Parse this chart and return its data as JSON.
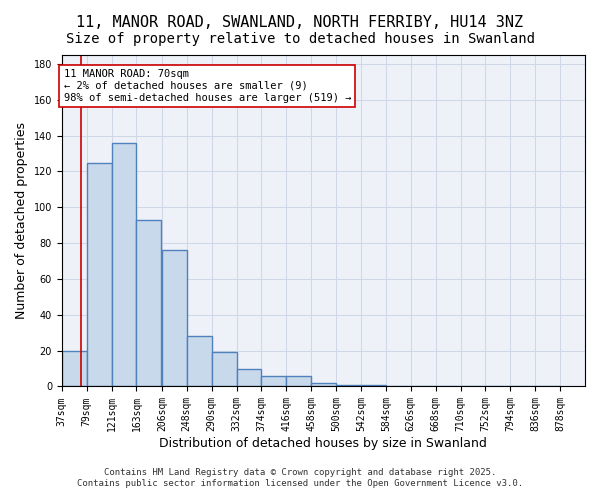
{
  "title1": "11, MANOR ROAD, SWANLAND, NORTH FERRIBY, HU14 3NZ",
  "title2": "Size of property relative to detached houses in Swanland",
  "xlabel": "Distribution of detached houses by size in Swanland",
  "ylabel": "Number of detached properties",
  "bin_labels": [
    "37sqm",
    "79sqm",
    "121sqm",
    "163sqm",
    "206sqm",
    "248sqm",
    "290sqm",
    "332sqm",
    "374sqm",
    "416sqm",
    "458sqm",
    "500sqm",
    "542sqm",
    "584sqm",
    "626sqm",
    "668sqm",
    "710sqm",
    "752sqm",
    "794sqm",
    "836sqm",
    "878sqm"
  ],
  "bin_edges": [
    37,
    79,
    121,
    163,
    206,
    248,
    290,
    332,
    374,
    416,
    458,
    500,
    542,
    584,
    626,
    668,
    710,
    752,
    794,
    836,
    878
  ],
  "bar_heights": [
    20,
    125,
    136,
    93,
    76,
    28,
    19,
    10,
    6,
    6,
    2,
    1,
    1,
    0,
    0,
    0,
    0,
    0,
    0,
    0
  ],
  "bar_color": "#c9d9ec",
  "bar_edge_color": "#4f81bd",
  "bar_edge_width": 1.0,
  "property_line_x": 70,
  "property_line_color": "#cc0000",
  "annotation_title": "11 MANOR ROAD: 70sqm",
  "annotation_line1": "← 2% of detached houses are smaller (9)",
  "annotation_line2": "98% of semi-detached houses are larger (519) →",
  "annotation_box_color": "#ffffff",
  "annotation_box_edge_color": "#cc0000",
  "ylim": [
    0,
    185
  ],
  "yticks": [
    0,
    20,
    40,
    60,
    80,
    100,
    120,
    140,
    160,
    180
  ],
  "grid_color": "#d0d8e8",
  "background_color": "#eef2f8",
  "footer1": "Contains HM Land Registry data © Crown copyright and database right 2025.",
  "footer2": "Contains public sector information licensed under the Open Government Licence v3.0.",
  "title_fontsize": 11,
  "subtitle_fontsize": 10,
  "tick_fontsize": 7,
  "xlabel_fontsize": 9,
  "ylabel_fontsize": 9,
  "annotation_fontsize": 7.5,
  "footer_fontsize": 6.5
}
